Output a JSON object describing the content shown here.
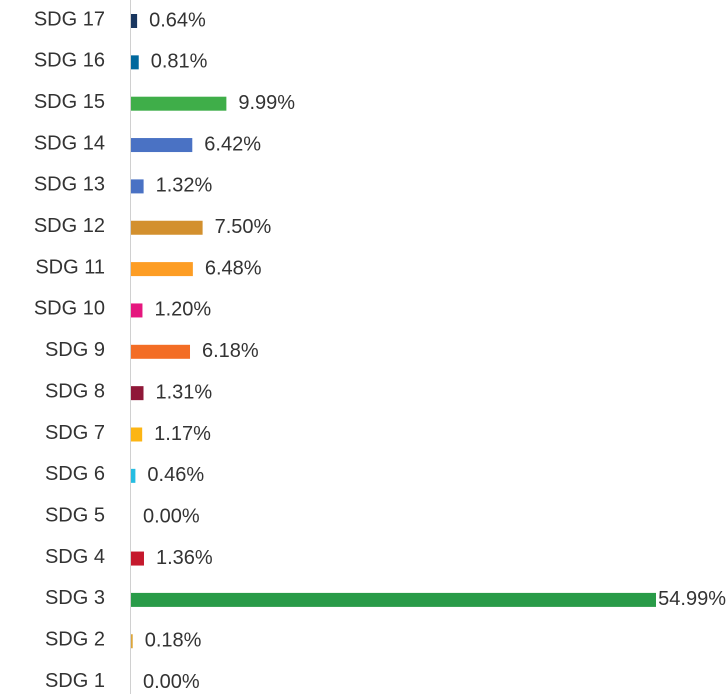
{
  "chart_data": {
    "type": "bar",
    "orientation": "horizontal",
    "categories": [
      "SDG 17",
      "SDG 16",
      "SDG 15",
      "SDG 14",
      "SDG 13",
      "SDG 12",
      "SDG 11",
      "SDG 10",
      "SDG 9",
      "SDG 8",
      "SDG 7",
      "SDG 6",
      "SDG 5",
      "SDG 4",
      "SDG 3",
      "SDG 2",
      "SDG 1"
    ],
    "values": [
      0.64,
      0.81,
      9.99,
      6.42,
      1.32,
      7.5,
      6.48,
      1.2,
      6.18,
      1.31,
      1.17,
      0.46,
      0.0,
      1.36,
      54.99,
      0.18,
      0.0
    ],
    "value_labels": [
      "0.64%",
      "0.81%",
      "9.99%",
      "6.42%",
      "1.32%",
      "7.50%",
      "6.48%",
      "1.20%",
      "6.18%",
      "1.31%",
      "1.17%",
      "0.46%",
      "0.00%",
      "1.36%",
      "54.99%",
      "0.18%",
      "0.00%"
    ],
    "colors": [
      "#19365f",
      "#00689d",
      "#3fae49",
      "#4a72c4",
      "#4a72c4",
      "#d3902e",
      "#fd9d24",
      "#e5177e",
      "#f36d25",
      "#8f1838",
      "#fcb514",
      "#26bde2",
      "#ef402b",
      "#c5192d",
      "#299b48",
      "#dda63a",
      "#e5243b"
    ]
  }
}
